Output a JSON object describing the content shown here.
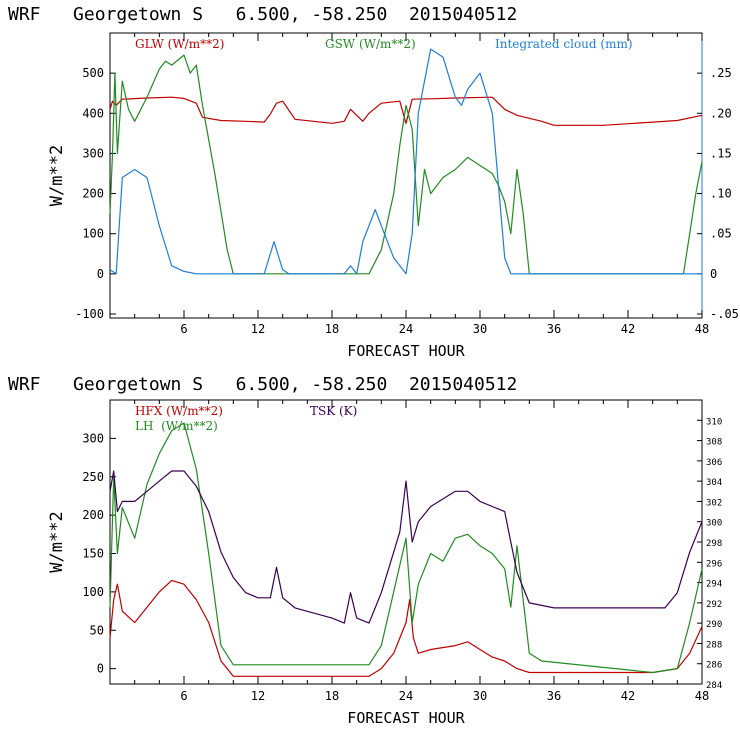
{
  "chart_data": [
    {
      "type": "line",
      "title": "WRF   Georgetown S   6.500, -58.250  2015040512",
      "xlabel": "FORECAST HOUR",
      "ylabel": "W/m**2",
      "xlim": [
        0,
        48
      ],
      "ylim": [
        -110,
        600
      ],
      "x_ticks": [
        "6",
        "12",
        "18",
        "24",
        "30",
        "36",
        "42",
        "48"
      ],
      "y_ticks": [
        "-100",
        "0",
        "100",
        "200",
        "300",
        "400",
        "500"
      ],
      "y2_ticks": [
        "-.05",
        "0",
        ".05",
        ".10",
        ".15",
        ".20",
        ".25"
      ],
      "y2lim": [
        -0.055,
        0.3
      ],
      "legend": [
        {
          "label": "GLW (W/m**2)",
          "color": "#c00000"
        },
        {
          "label": "GSW (W/m**2)",
          "color": "#228b22"
        },
        {
          "label": "Integrated cloud (mm)",
          "color": "#1e7fd8"
        }
      ],
      "series": [
        {
          "name": "GLW (W/m**2)",
          "color": "#c00000",
          "axis": "left",
          "points": [
            [
              0,
              410
            ],
            [
              0.2,
              430
            ],
            [
              0.5,
              420
            ],
            [
              1,
              435
            ],
            [
              3,
              438
            ],
            [
              5,
              440
            ],
            [
              6,
              437
            ],
            [
              7,
              425
            ],
            [
              7.5,
              390
            ],
            [
              9,
              382
            ],
            [
              11,
              380
            ],
            [
              12.5,
              378
            ],
            [
              13,
              398
            ],
            [
              13.5,
              425
            ],
            [
              14,
              430
            ],
            [
              14.5,
              408
            ],
            [
              15,
              385
            ],
            [
              18,
              375
            ],
            [
              19,
              380
            ],
            [
              19.5,
              410
            ],
            [
              20,
              395
            ],
            [
              20.5,
              380
            ],
            [
              21,
              400
            ],
            [
              22,
              425
            ],
            [
              23.5,
              430
            ],
            [
              24,
              375
            ],
            [
              24.5,
              435
            ],
            [
              26,
              436
            ],
            [
              28,
              438
            ],
            [
              31,
              440
            ],
            [
              32,
              410
            ],
            [
              33,
              395
            ],
            [
              35,
              380
            ],
            [
              36,
              370
            ],
            [
              40,
              370
            ],
            [
              44,
              378
            ],
            [
              46,
              382
            ],
            [
              48,
              395
            ]
          ]
        },
        {
          "name": "GSW (W/m**2)",
          "color": "#228b22",
          "axis": "left",
          "points": [
            [
              0,
              150
            ],
            [
              0.2,
              300
            ],
            [
              0.4,
              500
            ],
            [
              0.6,
              300
            ],
            [
              1,
              480
            ],
            [
              1.5,
              410
            ],
            [
              2,
              380
            ],
            [
              3,
              440
            ],
            [
              4,
              510
            ],
            [
              4.5,
              530
            ],
            [
              5,
              520
            ],
            [
              6,
              545
            ],
            [
              6.5,
              500
            ],
            [
              7,
              520
            ],
            [
              7.5,
              420
            ],
            [
              8.5,
              250
            ],
            [
              9.5,
              60
            ],
            [
              10,
              0
            ],
            [
              21,
              0
            ],
            [
              22,
              60
            ],
            [
              23,
              200
            ],
            [
              23.5,
              320
            ],
            [
              24,
              420
            ],
            [
              24.5,
              360
            ],
            [
              25,
              120
            ],
            [
              25.5,
              260
            ],
            [
              26,
              200
            ],
            [
              27,
              240
            ],
            [
              28,
              260
            ],
            [
              29,
              290
            ],
            [
              30,
              270
            ],
            [
              31,
              250
            ],
            [
              31.5,
              220
            ],
            [
              32,
              180
            ],
            [
              32.5,
              100
            ],
            [
              33,
              260
            ],
            [
              33.5,
              150
            ],
            [
              34,
              0
            ],
            [
              46.5,
              0
            ],
            [
              47,
              100
            ],
            [
              47.5,
              200
            ],
            [
              48,
              280
            ]
          ]
        },
        {
          "name": "Integrated cloud (mm)",
          "color": "#1e7fd8",
          "axis": "right",
          "points": [
            [
              0,
              0.005
            ],
            [
              0.5,
              0
            ],
            [
              1,
              0.12
            ],
            [
              2,
              0.13
            ],
            [
              3,
              0.12
            ],
            [
              4,
              0.06
            ],
            [
              5,
              0.01
            ],
            [
              6,
              0.003
            ],
            [
              7,
              0
            ],
            [
              12.5,
              0
            ],
            [
              13.3,
              0.04
            ],
            [
              14,
              0.005
            ],
            [
              14.5,
              0
            ],
            [
              19,
              0
            ],
            [
              19.5,
              0.01
            ],
            [
              20,
              0
            ],
            [
              20.5,
              0.04
            ],
            [
              21.5,
              0.08
            ],
            [
              22,
              0.06
            ],
            [
              23,
              0.02
            ],
            [
              24,
              0
            ],
            [
              24.5,
              0.05
            ],
            [
              25,
              0.2
            ],
            [
              26,
              0.28
            ],
            [
              27,
              0.27
            ],
            [
              28,
              0.22
            ],
            [
              28.5,
              0.21
            ],
            [
              29,
              0.23
            ],
            [
              30,
              0.25
            ],
            [
              31,
              0.2
            ],
            [
              32,
              0.02
            ],
            [
              32.5,
              0
            ],
            [
              48,
              0
            ]
          ]
        }
      ]
    },
    {
      "type": "line",
      "title": "WRF   Georgetown S   6.500, -58.250  2015040512",
      "xlabel": "FORECAST HOUR",
      "ylabel": "W/m**2",
      "xlim": [
        0,
        48
      ],
      "ylim": [
        -20,
        350
      ],
      "x_ticks": [
        "6",
        "12",
        "18",
        "24",
        "30",
        "36",
        "42",
        "48"
      ],
      "y_ticks": [
        "0",
        "50",
        "100",
        "150",
        "200",
        "250",
        "300"
      ],
      "y2_ticks": [
        "284",
        "286",
        "288",
        "290",
        "292",
        "294",
        "296",
        "298",
        "300",
        "302",
        "304",
        "306",
        "308",
        "310"
      ],
      "y2lim": [
        284,
        312
      ],
      "legend": [
        {
          "label": "HFX (W/m**2)",
          "color": "#c00000"
        },
        {
          "label": "LH  (W/m**2)",
          "color": "#228b22"
        },
        {
          "label": "TSK (K)",
          "color": "#3a0050"
        }
      ],
      "series": [
        {
          "name": "HFX (W/m**2)",
          "color": "#c00000",
          "axis": "left",
          "points": [
            [
              0,
              40
            ],
            [
              0.3,
              90
            ],
            [
              0.6,
              110
            ],
            [
              1,
              75
            ],
            [
              2,
              60
            ],
            [
              3,
              80
            ],
            [
              4,
              100
            ],
            [
              5,
              115
            ],
            [
              6,
              110
            ],
            [
              7,
              90
            ],
            [
              8,
              60
            ],
            [
              9,
              10
            ],
            [
              10,
              -10
            ],
            [
              21,
              -10
            ],
            [
              22,
              0
            ],
            [
              23,
              20
            ],
            [
              24,
              60
            ],
            [
              24.3,
              90
            ],
            [
              24.6,
              40
            ],
            [
              25,
              20
            ],
            [
              26,
              25
            ],
            [
              28,
              30
            ],
            [
              29,
              35
            ],
            [
              30,
              25
            ],
            [
              31,
              15
            ],
            [
              32,
              10
            ],
            [
              33,
              0
            ],
            [
              34,
              -5
            ],
            [
              44,
              -5
            ],
            [
              46,
              0
            ],
            [
              47,
              20
            ],
            [
              48,
              55
            ]
          ]
        },
        {
          "name": "LH  (W/m**2)",
          "color": "#228b22",
          "axis": "left",
          "points": [
            [
              0,
              80
            ],
            [
              0.3,
              250
            ],
            [
              0.6,
              150
            ],
            [
              1,
              210
            ],
            [
              2,
              170
            ],
            [
              3,
              240
            ],
            [
              4,
              280
            ],
            [
              5,
              310
            ],
            [
              6,
              320
            ],
            [
              7,
              260
            ],
            [
              8,
              150
            ],
            [
              9,
              30
            ],
            [
              10,
              5
            ],
            [
              21,
              5
            ],
            [
              22,
              30
            ],
            [
              23,
              100
            ],
            [
              24,
              170
            ],
            [
              24.5,
              60
            ],
            [
              25,
              110
            ],
            [
              26,
              150
            ],
            [
              27,
              140
            ],
            [
              28,
              170
            ],
            [
              29,
              175
            ],
            [
              30,
              160
            ],
            [
              31,
              150
            ],
            [
              32,
              130
            ],
            [
              32.5,
              80
            ],
            [
              33,
              160
            ],
            [
              34,
              20
            ],
            [
              35,
              10
            ],
            [
              44,
              -5
            ],
            [
              46,
              0
            ],
            [
              47,
              60
            ],
            [
              48,
              130
            ]
          ]
        },
        {
          "name": "TSK (K)",
          "color": "#3a0050",
          "axis": "right",
          "points": [
            [
              0,
              303
            ],
            [
              0.3,
              305
            ],
            [
              0.6,
              301
            ],
            [
              1,
              302
            ],
            [
              2,
              302
            ],
            [
              3,
              303
            ],
            [
              4,
              304
            ],
            [
              5,
              305
            ],
            [
              6,
              305
            ],
            [
              7,
              303.5
            ],
            [
              8,
              301
            ],
            [
              9,
              297
            ],
            [
              10,
              294.5
            ],
            [
              11,
              293
            ],
            [
              12,
              292.5
            ],
            [
              13,
              292.5
            ],
            [
              13.5,
              295.5
            ],
            [
              14,
              292.5
            ],
            [
              15,
              291.5
            ],
            [
              18,
              290.5
            ],
            [
              19,
              290
            ],
            [
              19.5,
              293
            ],
            [
              20,
              290.5
            ],
            [
              21,
              290
            ],
            [
              22,
              293
            ],
            [
              23,
              297
            ],
            [
              23.5,
              299
            ],
            [
              24,
              304
            ],
            [
              24.5,
              298
            ],
            [
              25,
              300
            ],
            [
              26,
              301.5
            ],
            [
              28,
              303
            ],
            [
              29,
              303
            ],
            [
              30,
              302
            ],
            [
              31,
              301.5
            ],
            [
              32,
              301
            ],
            [
              32.5,
              298
            ],
            [
              33,
              295
            ],
            [
              34,
              292
            ],
            [
              36,
              291.5
            ],
            [
              40,
              291.5
            ],
            [
              45,
              291.5
            ],
            [
              46,
              293
            ],
            [
              47,
              297
            ],
            [
              48,
              300
            ]
          ]
        }
      ]
    }
  ]
}
